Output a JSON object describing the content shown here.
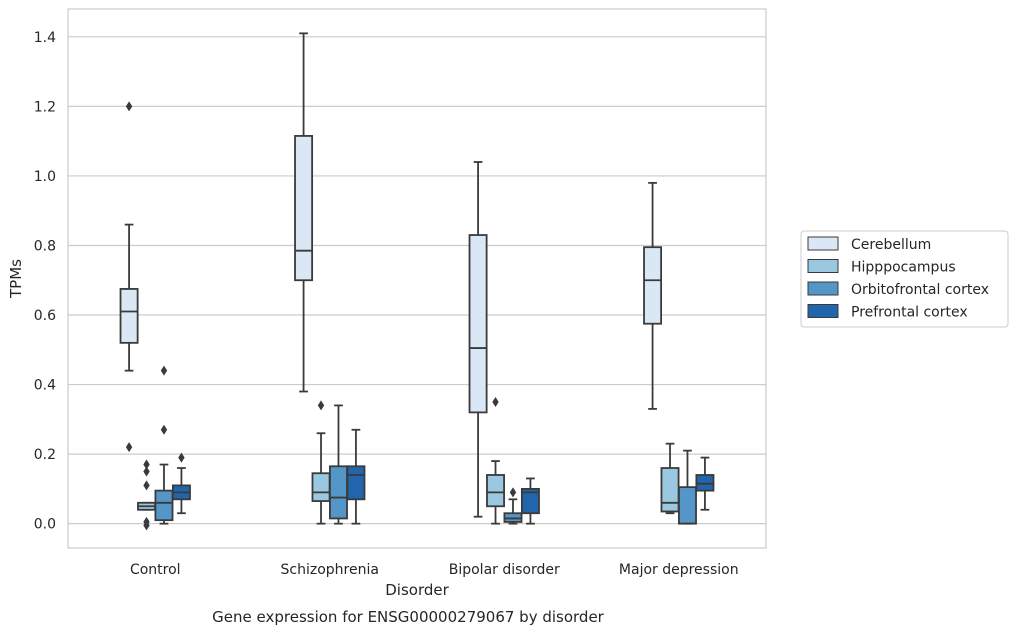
{
  "caption": "Gene expression for ENSG00000279067 by disorder",
  "chart_data": {
    "type": "boxplot",
    "xlabel": "Disorder",
    "ylabel": "TPMs",
    "ylim": [
      -0.07,
      1.48
    ],
    "yticks": [
      0.0,
      0.2,
      0.4,
      0.6,
      0.8,
      1.0,
      1.2,
      1.4
    ],
    "ytick_labels": [
      "0.0",
      "0.2",
      "0.4",
      "0.6",
      "0.8",
      "1.0",
      "1.2",
      "1.4"
    ],
    "grid": "horizontal",
    "legend_position": "outside-right",
    "categories": [
      "Control",
      "Schizophrenia",
      "Bipolar disorder",
      "Major depression"
    ],
    "series": [
      {
        "name": "Cerebellum",
        "color": "#dae8f5",
        "boxes": [
          {
            "whislo": 0.44,
            "q1": 0.52,
            "med": 0.61,
            "q3": 0.675,
            "whishi": 0.86,
            "fliers": [
              1.2,
              0.22
            ]
          },
          {
            "whislo": 0.38,
            "q1": 0.7,
            "med": 0.785,
            "q3": 1.115,
            "whishi": 1.41,
            "fliers": []
          },
          {
            "whislo": 0.02,
            "q1": 0.32,
            "med": 0.505,
            "q3": 0.83,
            "whishi": 1.04,
            "fliers": []
          },
          {
            "whislo": 0.33,
            "q1": 0.575,
            "med": 0.7,
            "q3": 0.795,
            "whishi": 0.98,
            "fliers": []
          }
        ]
      },
      {
        "name": "Hipppocampus",
        "color": "#9ac8e0",
        "boxes": [
          {
            "whislo": 0.04,
            "q1": 0.04,
            "med": 0.05,
            "q3": 0.06,
            "whishi": 0.06,
            "fliers": [
              0.17,
              0.15,
              0.11,
              0.005,
              -0.005
            ]
          },
          {
            "whislo": 0.0,
            "q1": 0.065,
            "med": 0.09,
            "q3": 0.145,
            "whishi": 0.26,
            "fliers": [
              0.34
            ]
          },
          {
            "whislo": 0.0,
            "q1": 0.05,
            "med": 0.09,
            "q3": 0.14,
            "whishi": 0.18,
            "fliers": [
              0.35
            ]
          },
          {
            "whislo": 0.03,
            "q1": 0.035,
            "med": 0.06,
            "q3": 0.16,
            "whishi": 0.23,
            "fliers": []
          }
        ]
      },
      {
        "name": "Orbitofrontal cortex",
        "color": "#5596c8",
        "boxes": [
          {
            "whislo": 0.0,
            "q1": 0.01,
            "med": 0.06,
            "q3": 0.095,
            "whishi": 0.17,
            "fliers": [
              0.44,
              0.27
            ]
          },
          {
            "whislo": 0.0,
            "q1": 0.015,
            "med": 0.075,
            "q3": 0.165,
            "whishi": 0.34,
            "fliers": []
          },
          {
            "whislo": 0.0,
            "q1": 0.005,
            "med": 0.015,
            "q3": 0.03,
            "whishi": 0.07,
            "fliers": [
              0.09
            ]
          },
          {
            "whislo": 0.0,
            "q1": 0.0,
            "med": 0.0,
            "q3": 0.105,
            "whishi": 0.21,
            "fliers": []
          }
        ]
      },
      {
        "name": "Prefrontal cortex",
        "color": "#2166ac",
        "boxes": [
          {
            "whislo": 0.03,
            "q1": 0.07,
            "med": 0.09,
            "q3": 0.11,
            "whishi": 0.16,
            "fliers": [
              0.19
            ]
          },
          {
            "whislo": 0.0,
            "q1": 0.07,
            "med": 0.14,
            "q3": 0.165,
            "whishi": 0.27,
            "fliers": []
          },
          {
            "whislo": 0.0,
            "q1": 0.03,
            "med": 0.09,
            "q3": 0.1,
            "whishi": 0.13,
            "fliers": []
          },
          {
            "whislo": 0.04,
            "q1": 0.095,
            "med": 0.115,
            "q3": 0.14,
            "whishi": 0.19,
            "fliers": []
          }
        ]
      }
    ]
  }
}
